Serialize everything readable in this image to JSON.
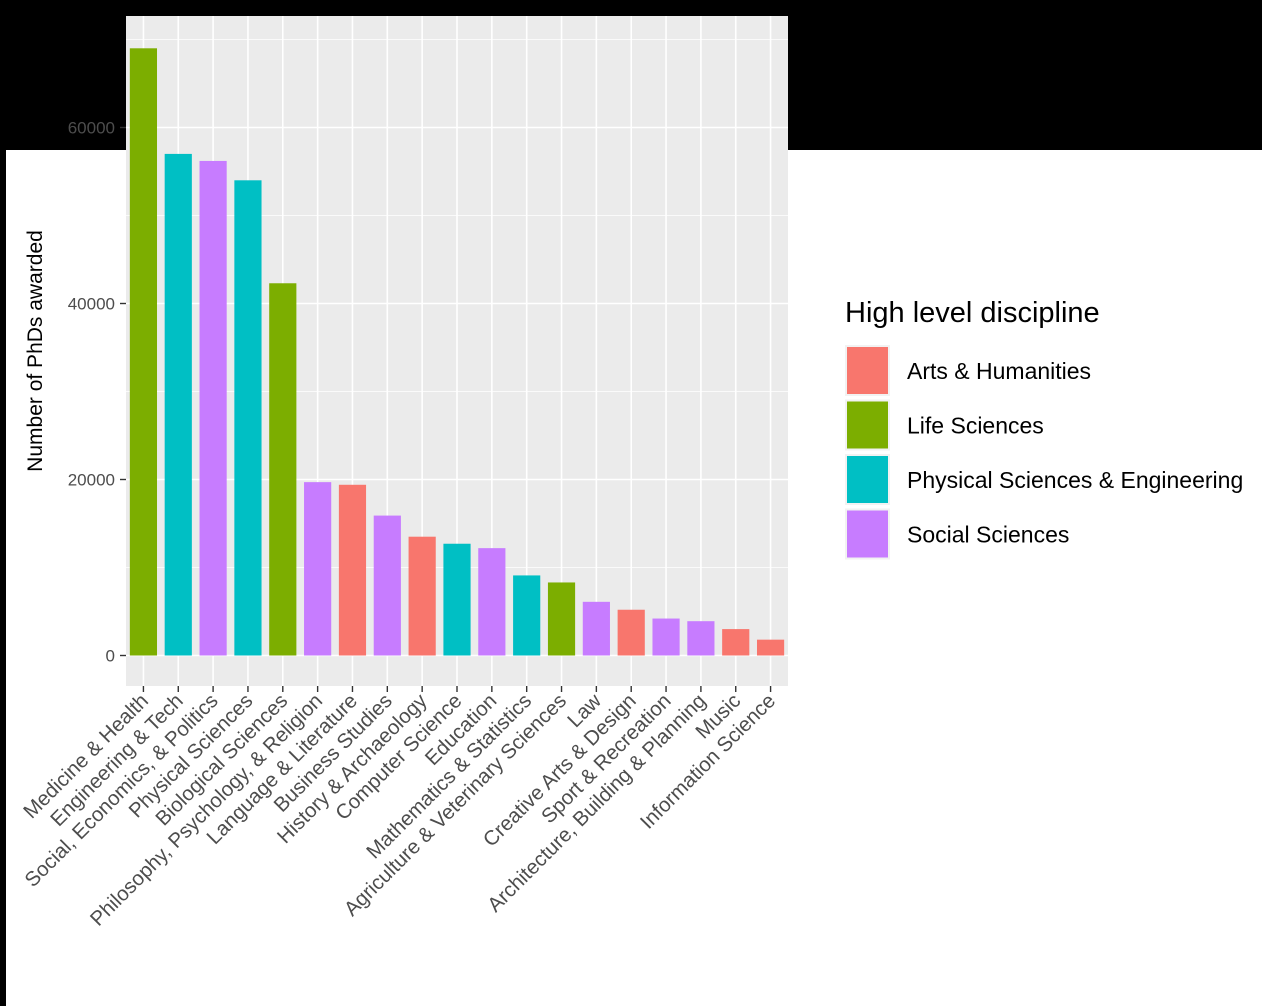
{
  "chart_data": {
    "type": "bar",
    "title": "",
    "xlabel": "",
    "ylabel": "Number of PhDs awarded",
    "ylim": [
      -3500,
      73000
    ],
    "yticks": [
      0,
      20000,
      40000,
      60000
    ],
    "ytick_labels": [
      "0",
      "20000",
      "40000",
      "60000"
    ],
    "grid": true,
    "legend": {
      "title": "High level discipline",
      "position": "right",
      "entries": [
        {
          "name": "Arts & Humanities",
          "color": "#F8766D"
        },
        {
          "name": "Life Sciences",
          "color": "#7CAE00"
        },
        {
          "name": "Physical Sciences & Engineering",
          "color": "#00BFC4"
        },
        {
          "name": "Social Sciences",
          "color": "#C77CFF"
        }
      ]
    },
    "categories": [
      "Medicine & Health",
      "Engineering & Tech",
      "Social, Economics, & Politics",
      "Physical Sciences",
      "Biological Sciences",
      "Philosophy, Psychology, & Religion",
      "Language & Literature",
      "Business Studies",
      "History & Archaeology",
      "Computer Science",
      "Education",
      "Mathematics & Statistics",
      "Agriculture & Veterinary Sciences",
      "Law",
      "Creative Arts & Design",
      "Sport & Recreation",
      "Architecture, Building & Planning",
      "Music",
      "Information Science"
    ],
    "values": [
      69000,
      57000,
      56200,
      54000,
      42300,
      19700,
      19400,
      15900,
      13500,
      12700,
      12200,
      9100,
      8300,
      6100,
      5200,
      4200,
      3900,
      3000,
      1800
    ],
    "groups": [
      "Life Sciences",
      "Physical Sciences & Engineering",
      "Social Sciences",
      "Physical Sciences & Engineering",
      "Life Sciences",
      "Social Sciences",
      "Arts & Humanities",
      "Social Sciences",
      "Arts & Humanities",
      "Physical Sciences & Engineering",
      "Social Sciences",
      "Physical Sciences & Engineering",
      "Life Sciences",
      "Social Sciences",
      "Arts & Humanities",
      "Social Sciences",
      "Social Sciences",
      "Arts & Humanities",
      "Arts & Humanities"
    ],
    "colors": {
      "panel_background": "#EBEBEB",
      "grid_major": "#FFFFFF",
      "overlay": "#000000"
    }
  }
}
